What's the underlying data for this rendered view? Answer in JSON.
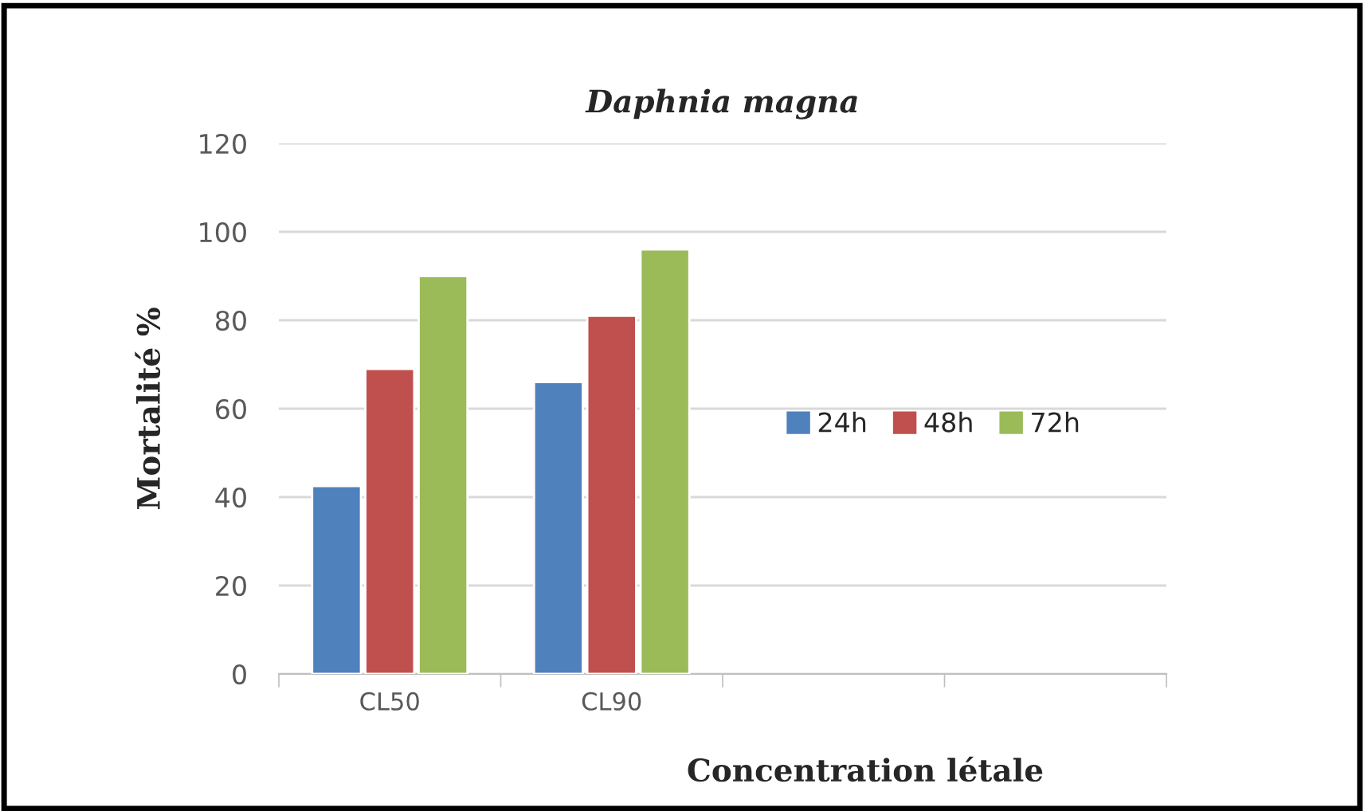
{
  "chart_data": {
    "type": "bar",
    "title": "Daphnia magna",
    "xlabel": "Concentration létale",
    "ylabel": "Mortalité %",
    "categories": [
      "CL50",
      "CL90",
      null,
      null
    ],
    "series": [
      {
        "name": "24h",
        "color": "#4f81bd",
        "values": [
          42.5,
          66,
          null,
          null
        ]
      },
      {
        "name": "48h",
        "color": "#c0504d",
        "values": [
          69,
          81,
          null,
          null
        ]
      },
      {
        "name": "72h",
        "color": "#9bbb59",
        "values": [
          90,
          96,
          null,
          null
        ]
      }
    ],
    "ylim": [
      0,
      120
    ],
    "yticks": [
      0,
      20,
      40,
      60,
      80,
      100,
      120
    ],
    "grid": "y",
    "legend": "right"
  }
}
